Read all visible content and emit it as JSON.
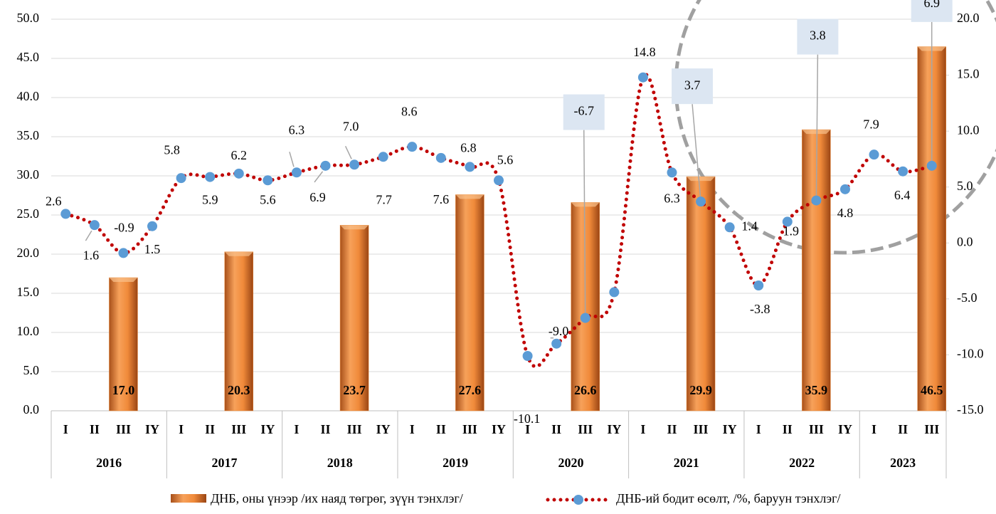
{
  "chart_data": {
    "type": "bar_line",
    "groups": [
      {
        "label": "2016",
        "categories": [
          "I",
          "II",
          "III",
          "IY"
        ]
      },
      {
        "label": "2017",
        "categories": [
          "I",
          "II",
          "III",
          "IY"
        ]
      },
      {
        "label": "2018",
        "categories": [
          "I",
          "II",
          "III",
          "IY"
        ]
      },
      {
        "label": "2019",
        "categories": [
          "I",
          "II",
          "III",
          "IY"
        ]
      },
      {
        "label": "2020",
        "categories": [
          "I",
          "II",
          "III",
          "IY"
        ]
      },
      {
        "label": "2021",
        "categories": [
          "I",
          "II",
          "III",
          "IY"
        ]
      },
      {
        "label": "2022",
        "categories": [
          "I",
          "II",
          "III",
          "IY"
        ]
      },
      {
        "label": "2023",
        "categories": [
          "I",
          "II",
          "III"
        ]
      }
    ],
    "series": [
      {
        "name": "ДНБ, оны үнээр /их наяд төгрөг, зүүн тэнхлэг/",
        "type": "bar",
        "color": "#e8822e",
        "axis": "y",
        "values": [
          null,
          null,
          17.0,
          null,
          null,
          null,
          20.3,
          null,
          null,
          null,
          23.7,
          null,
          null,
          null,
          27.6,
          null,
          null,
          null,
          26.6,
          null,
          null,
          null,
          29.9,
          null,
          null,
          null,
          35.9,
          null,
          null,
          null,
          46.5
        ],
        "value_labels": [
          null,
          null,
          "17.0",
          null,
          null,
          null,
          "20.3",
          null,
          null,
          null,
          "23.7",
          null,
          null,
          null,
          "27.6",
          null,
          null,
          null,
          "26.6",
          null,
          null,
          null,
          "29.9",
          null,
          null,
          null,
          "35.9",
          null,
          null,
          null,
          "46.5"
        ]
      },
      {
        "name": "ДНБ-ий бодит өсөлт, /%, баруун тэнхлэг/",
        "type": "line",
        "color": "#c00000",
        "marker_color": "#5b9bd5",
        "axis": "y2",
        "values": [
          2.6,
          1.6,
          -0.9,
          1.5,
          5.8,
          5.9,
          6.2,
          5.6,
          6.3,
          6.9,
          7.0,
          7.7,
          8.6,
          7.6,
          6.8,
          5.6,
          -10.1,
          -9.0,
          -6.7,
          -4.4,
          14.8,
          6.3,
          3.7,
          1.4,
          -3.8,
          1.9,
          3.8,
          4.8,
          7.9,
          6.4,
          6.9
        ],
        "value_labels": [
          "2.6",
          "1.6",
          "-0.9",
          "1.5",
          "5.8",
          "5.9",
          "6.2",
          "5.6",
          "6.3",
          "6.9",
          "7.0",
          "7.7",
          "8.6",
          "7.6",
          "6.8",
          "5.6",
          "-10.1",
          "-9.0",
          "-6.7",
          null,
          "14.8",
          "6.3",
          "3.7",
          "1.4",
          "-3.8",
          "1.9",
          "3.8",
          "4.8",
          "7.9",
          "6.4",
          "6.9"
        ]
      }
    ],
    "ylim": [
      0,
      50
    ],
    "yticks": [
      {
        "value": 0,
        "label": "0.0"
      },
      {
        "value": 5,
        "label": "5.0"
      },
      {
        "value": 10,
        "label": "10.0"
      },
      {
        "value": 15,
        "label": "15.0"
      },
      {
        "value": 20,
        "label": "20.0"
      },
      {
        "value": 25,
        "label": "25.0"
      },
      {
        "value": 30,
        "label": "30.0"
      },
      {
        "value": 35,
        "label": "35.0"
      },
      {
        "value": 40,
        "label": "40.0"
      },
      {
        "value": 45,
        "label": "45.0"
      },
      {
        "value": 50,
        "label": "50.0"
      }
    ],
    "y2lim": [
      -15,
      20
    ],
    "y2ticks": [
      {
        "value": -15,
        "label": "-15.0"
      },
      {
        "value": -10,
        "label": "-10.0"
      },
      {
        "value": -5,
        "label": "-5.0"
      },
      {
        "value": 0,
        "label": "0.0"
      },
      {
        "value": 5,
        "label": "5.0"
      },
      {
        "value": 10,
        "label": "10.0"
      },
      {
        "value": 15,
        "label": "15.0"
      },
      {
        "value": 20,
        "label": "20.0"
      }
    ],
    "grid": true,
    "legend": "bottom"
  }
}
